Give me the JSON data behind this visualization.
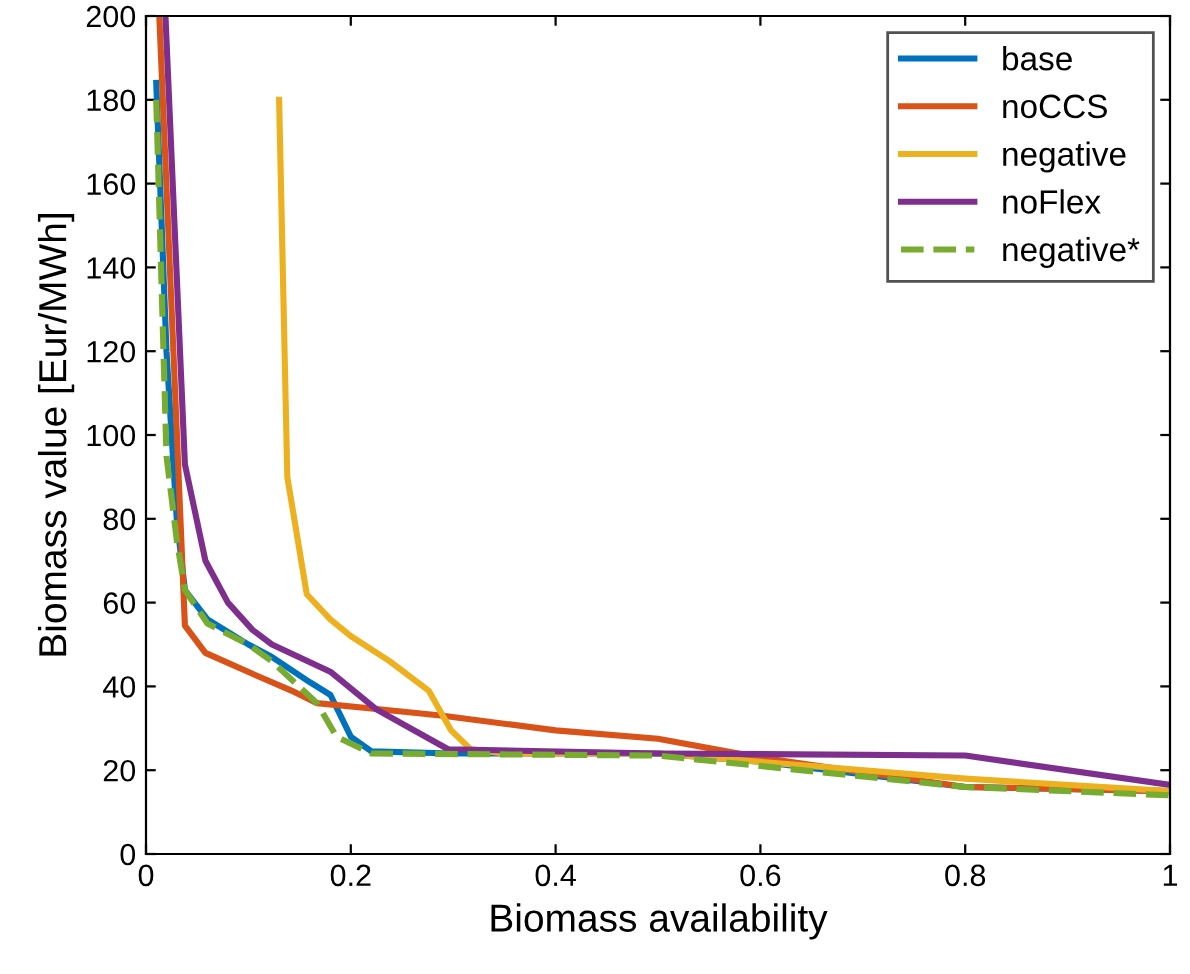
{
  "chart_data": {
    "type": "line",
    "xlabel": "Biomass availability",
    "ylabel": "Biomass value [Eur/MWh]",
    "xlim": [
      0,
      1
    ],
    "ylim": [
      0,
      200
    ],
    "xticks": [
      0,
      0.2,
      0.4,
      0.6,
      0.8,
      1
    ],
    "yticks": [
      0,
      20,
      40,
      60,
      80,
      100,
      120,
      140,
      160,
      180,
      200
    ],
    "grid": false,
    "legend": "top right",
    "line_style": "solid",
    "series": [
      {
        "name": "base",
        "color": "#0072bd",
        "x": [
          0.01,
          0.02,
          0.03,
          0.038,
          0.06,
          0.1,
          0.123,
          0.16,
          0.18,
          0.2,
          0.22,
          0.3,
          0.5,
          0.6,
          0.8,
          1
        ],
        "values": [
          184,
          120,
          80,
          63,
          56,
          50,
          47,
          41,
          38,
          28,
          24.5,
          24,
          24,
          22,
          16,
          15
        ]
      },
      {
        "name": "noCCS",
        "color": "#d95319",
        "x": [
          0.013,
          0.038,
          0.058,
          0.104,
          0.142,
          0.167,
          0.23,
          0.29,
          0.4,
          0.5,
          0.6,
          0.8,
          1
        ],
        "values": [
          200,
          54.5,
          48,
          43,
          39,
          36,
          34.5,
          33,
          29.5,
          27.5,
          23,
          16,
          15
        ]
      },
      {
        "name": "negative",
        "color": "#edb120",
        "x": [
          0.13,
          0.138,
          0.157,
          0.18,
          0.2,
          0.238,
          0.276,
          0.298,
          0.317,
          0.35,
          0.5,
          0.8,
          1
        ],
        "values": [
          180,
          90,
          62,
          56,
          52,
          46,
          39,
          29.5,
          25,
          24,
          24,
          18,
          15
        ]
      },
      {
        "name": "noFlex",
        "color": "#7e2f8e",
        "x": [
          0.019,
          0.038,
          0.058,
          0.08,
          0.104,
          0.123,
          0.18,
          0.225,
          0.295,
          0.5,
          0.8,
          1
        ],
        "values": [
          200,
          93,
          70,
          60,
          53.5,
          50,
          43.5,
          34.5,
          25,
          24,
          23.5,
          16.5
        ]
      },
      {
        "name": "negative*",
        "color": "#77ac30",
        "line_style": "dashed",
        "x": [
          0.01,
          0.02,
          0.03,
          0.038,
          0.06,
          0.1,
          0.123,
          0.167,
          0.186,
          0.22,
          0.5,
          0.6,
          0.8,
          1
        ],
        "values": [
          180,
          95,
          75,
          63,
          55,
          50,
          46,
          36,
          28,
          24,
          23.5,
          21,
          16,
          14
        ]
      }
    ]
  }
}
